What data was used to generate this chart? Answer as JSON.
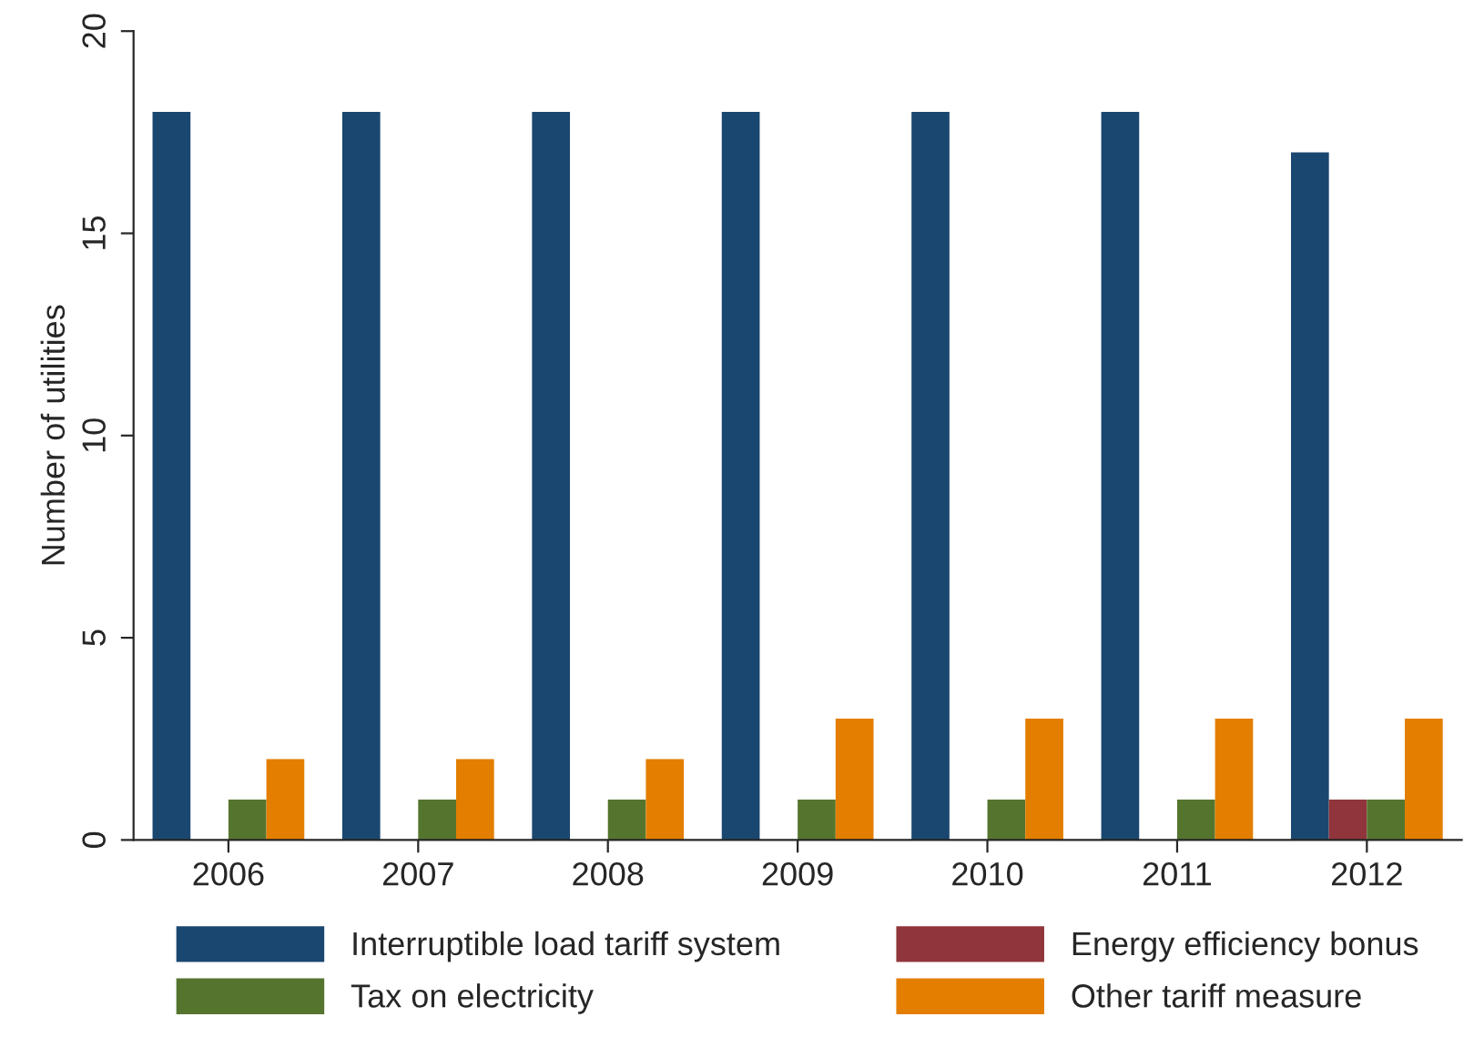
{
  "chart_data": {
    "type": "bar",
    "ylabel": "Number of utilities",
    "categories": [
      "2006",
      "2007",
      "2008",
      "2009",
      "2010",
      "2011",
      "2012"
    ],
    "series": [
      {
        "name": "Interruptible load tariff system",
        "color": "#1a476f",
        "values": [
          18,
          18,
          18,
          18,
          18,
          18,
          17
        ]
      },
      {
        "name": "Energy efficiency bonus",
        "color": "#90353b",
        "values": [
          0,
          0,
          0,
          0,
          0,
          0,
          1
        ]
      },
      {
        "name": "Tax on electricity",
        "color": "#55752f",
        "values": [
          1,
          1,
          1,
          1,
          1,
          1,
          1
        ]
      },
      {
        "name": "Other tariff measure",
        "color": "#e37e00",
        "values": [
          2,
          2,
          2,
          3,
          3,
          3,
          3
        ]
      }
    ],
    "ylim": [
      0,
      20
    ],
    "yticks": [
      0,
      5,
      10,
      15,
      20
    ],
    "grid": false,
    "legend": "bottom"
  }
}
